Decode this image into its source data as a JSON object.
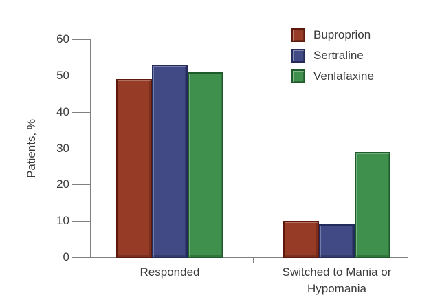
{
  "chart_data": {
    "type": "bar",
    "ylabel": "Patients, %",
    "categories": [
      "Responded",
      "Switched to Mania or\nHypomania"
    ],
    "series": [
      {
        "name": "Buproprion",
        "color": "#963c26",
        "border_color": "#5e180c",
        "values": [
          49,
          10
        ]
      },
      {
        "name": "Sertraline",
        "color": "#414a85",
        "border_color": "#232c5c",
        "values": [
          53,
          9
        ]
      },
      {
        "name": "Venlafaxine",
        "color": "#3f8f4d",
        "border_color": "#1d5c2a",
        "values": [
          51,
          29
        ]
      }
    ],
    "ylim": [
      0,
      60
    ],
    "yticks": [
      0,
      10,
      20,
      30,
      40,
      50,
      60
    ],
    "grid": false,
    "legend_position": "top-right",
    "axis_color": "#808080",
    "text_color": "#3b3b3b"
  }
}
